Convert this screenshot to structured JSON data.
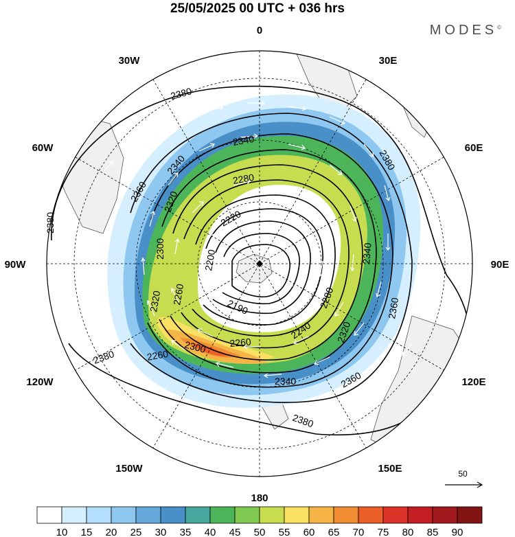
{
  "header": {
    "title": "25/05/2025  00 UTC  + 036 hrs",
    "brand": "MODES",
    "brand_mark": "©"
  },
  "map": {
    "projection": "south-polar-stereographic",
    "longitude_labels": {
      "top": "0",
      "top_right": "30E",
      "right_upper": "60E",
      "right": "90E",
      "right_lower": "120E",
      "bottom_right": "150E",
      "bottom": "180",
      "bottom_left": "150W",
      "left_lower": "120W",
      "left": "90W",
      "left_upper": "60W",
      "top_left": "30W"
    },
    "contour_labels": [
      "2380",
      "2340",
      "2360",
      "2340",
      "2280",
      "2320",
      "2220",
      "2300",
      "2200",
      "2260",
      "2190",
      "2320",
      "2260",
      "2240",
      "2300",
      "2260",
      "2280",
      "2340",
      "2360",
      "2320",
      "2380",
      "2380",
      "2360",
      "2340",
      "2380",
      "2380"
    ],
    "vector_reference": {
      "label": "50"
    }
  },
  "colorbar": {
    "ticks": [
      "10",
      "15",
      "20",
      "25",
      "30",
      "35",
      "40",
      "45",
      "50",
      "55",
      "60",
      "65",
      "70",
      "75",
      "80",
      "85",
      "90"
    ],
    "colors": [
      "#ffffff",
      "#d6efff",
      "#b4dffa",
      "#8ec8f0",
      "#66aadc",
      "#4a90c8",
      "#46a79c",
      "#4cb55a",
      "#80c850",
      "#c8dc50",
      "#fae164",
      "#f5b446",
      "#f08c32",
      "#eb5f28",
      "#dc3228",
      "#c31e24",
      "#a01a1e",
      "#821414"
    ]
  }
}
